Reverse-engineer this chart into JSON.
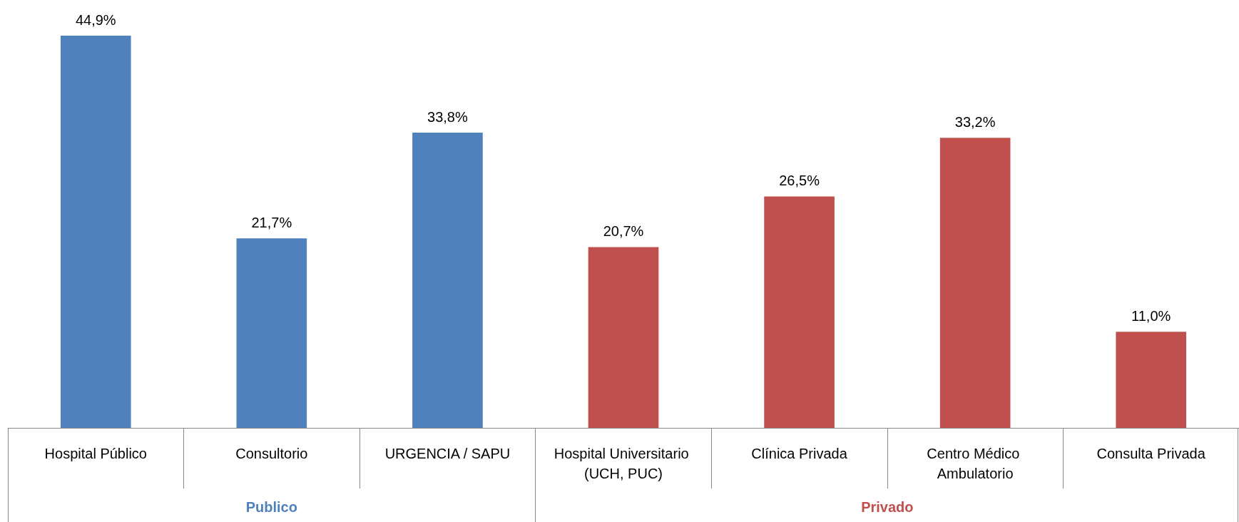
{
  "chart_data": {
    "type": "bar",
    "categories": [
      "Hospital Público",
      "Consultorio",
      "URGENCIA / SAPU",
      "Hospital Universitario (UCH, PUC)",
      "Clínica Privada",
      "Centro Médico Ambulatorio",
      "Consulta Privada"
    ],
    "series": [
      {
        "name": "Publico",
        "color": "#4f81bd",
        "values": [
          44.9,
          21.7,
          33.8,
          null,
          null,
          null,
          null
        ],
        "value_labels": [
          "44,9%",
          "21,7%",
          "33,8%",
          null,
          null,
          null,
          null
        ]
      },
      {
        "name": "Privado",
        "color": "#c0504d",
        "values": [
          null,
          null,
          null,
          20.7,
          26.5,
          33.2,
          11.0
        ],
        "value_labels": [
          null,
          null,
          null,
          "20,7%",
          "26,5%",
          "33,2%",
          "11,0%"
        ]
      }
    ],
    "legend": false
  }
}
